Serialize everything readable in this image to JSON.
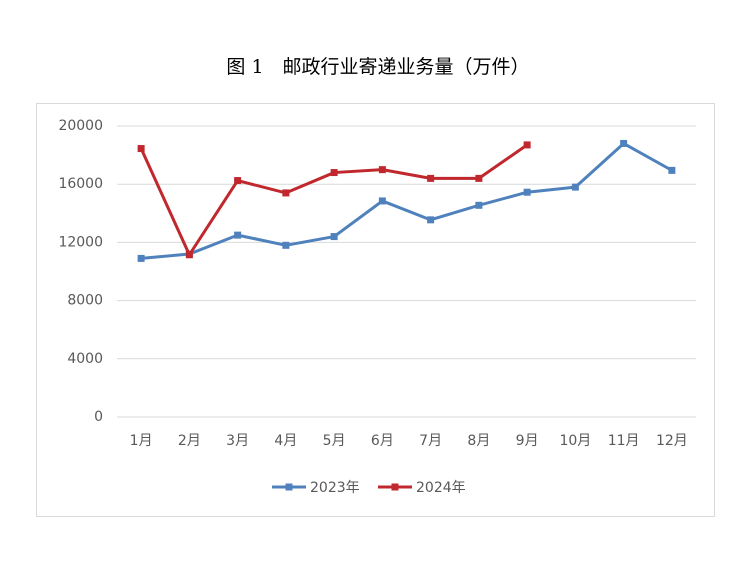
{
  "chart_data": {
    "type": "line",
    "title": "图 1　邮政行业寄递业务量（万件）",
    "categories": [
      "1月",
      "2月",
      "3月",
      "4月",
      "5月",
      "6月",
      "7月",
      "8月",
      "9月",
      "10月",
      "11月",
      "12月"
    ],
    "series": [
      {
        "name": "2023年",
        "color": "#4f81bd",
        "values": [
          10900,
          11200,
          12500,
          11800,
          12400,
          14850,
          13550,
          14550,
          15450,
          15800,
          18800,
          16950
        ]
      },
      {
        "name": "2024年",
        "color": "#c0282d",
        "values": [
          18450,
          11150,
          16250,
          15400,
          16800,
          17000,
          16400,
          16400,
          18700,
          null,
          null,
          null
        ]
      }
    ],
    "ylim": [
      0,
      20000
    ],
    "yticks": [
      0,
      4000,
      8000,
      12000,
      16000,
      20000
    ],
    "grid": true,
    "legend": "bottom"
  }
}
